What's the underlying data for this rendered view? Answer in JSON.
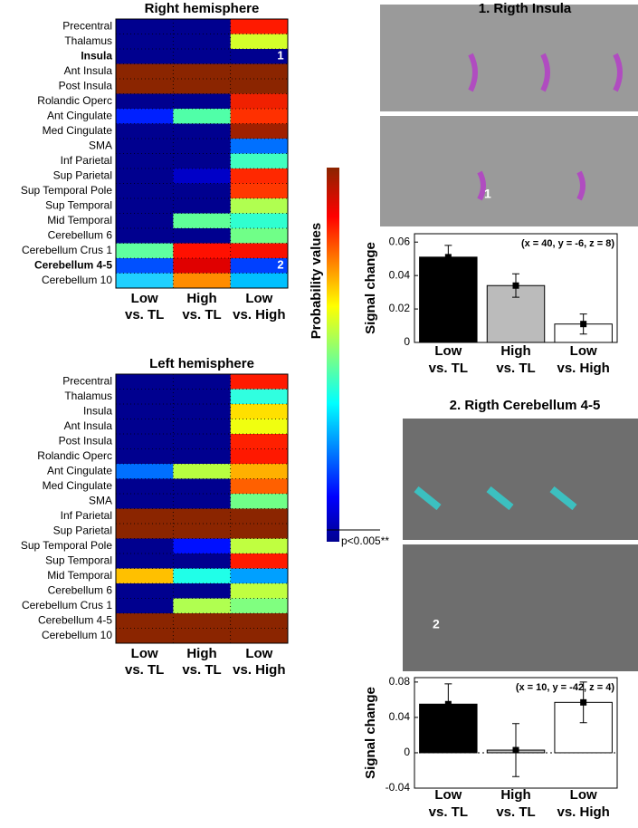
{
  "heatmaps": [
    {
      "title": "Right hemisphere",
      "columns": [
        [
          "Low",
          "vs. TL"
        ],
        [
          "High",
          "vs. TL"
        ],
        [
          "Low",
          "vs. High"
        ]
      ],
      "rows": [
        {
          "label": "Precentral",
          "colors": [
            "#00008f",
            "#00008f",
            "#ff1a00"
          ]
        },
        {
          "label": "Thalamus",
          "colors": [
            "#00008f",
            "#00008f",
            "#d4ff2a"
          ]
        },
        {
          "label": "Insula",
          "bold": true,
          "marker": "1",
          "colors": [
            "#00008f",
            "#00008f",
            "#00008f"
          ]
        },
        {
          "label": "Ant Insula",
          "colors": [
            "#8b2500",
            "#8b2500",
            "#8b2500"
          ]
        },
        {
          "label": "Post Insula",
          "colors": [
            "#8b2500",
            "#8b2500",
            "#8b2500"
          ]
        },
        {
          "label": "Rolandic Operc",
          "colors": [
            "#00008f",
            "#00008f",
            "#f02000"
          ]
        },
        {
          "label": "Ant Cingulate",
          "colors": [
            "#0020ff",
            "#50ffa8",
            "#ff3000"
          ]
        },
        {
          "label": "Med Cingulate",
          "colors": [
            "#00008f",
            "#00008f",
            "#a02000"
          ]
        },
        {
          "label": "SMA",
          "colors": [
            "#00008f",
            "#00008f",
            "#0070ff"
          ]
        },
        {
          "label": "Inf Parietal",
          "colors": [
            "#00008f",
            "#00008f",
            "#40ffc0"
          ]
        },
        {
          "label": "Sup Parietal",
          "colors": [
            "#00008f",
            "#0000c8",
            "#ff2800"
          ]
        },
        {
          "label": "Sup Temporal Pole",
          "colors": [
            "#00008f",
            "#00008f",
            "#ff3800"
          ]
        },
        {
          "label": "Sup Temporal",
          "colors": [
            "#00008f",
            "#00008f",
            "#b0ff50"
          ]
        },
        {
          "label": "Mid Temporal",
          "colors": [
            "#00008f",
            "#60ff98",
            "#30ffd0"
          ]
        },
        {
          "label": "Cerebellum 6",
          "colors": [
            "#00008f",
            "#00008f",
            "#70ff88"
          ]
        },
        {
          "label": "Cerebellum Crus 1",
          "colors": [
            "#60ffa0",
            "#ff1000",
            "#f81000"
          ]
        },
        {
          "label": "Cerebellum 4-5",
          "bold": true,
          "marker": "2",
          "colors": [
            "#0050ff",
            "#e00000",
            "#0040ff"
          ]
        },
        {
          "label": "Cerebellum 10",
          "colors": [
            "#20d0ff",
            "#ff8c00",
            "#00c0ff"
          ]
        }
      ]
    },
    {
      "title": "Left hemisphere",
      "columns": [
        [
          "Low",
          "vs. TL"
        ],
        [
          "High",
          "vs. TL"
        ],
        [
          "Low",
          "vs. High"
        ]
      ],
      "rows": [
        {
          "label": "Precentral",
          "colors": [
            "#00008f",
            "#00008f",
            "#ff1a00"
          ]
        },
        {
          "label": "Thalamus",
          "colors": [
            "#00008f",
            "#00008f",
            "#30ffe0"
          ]
        },
        {
          "label": "Insula",
          "colors": [
            "#00008f",
            "#00008f",
            "#ffe000"
          ]
        },
        {
          "label": "Ant Insula",
          "colors": [
            "#00008f",
            "#00008f",
            "#f0ff10"
          ]
        },
        {
          "label": "Post Insula",
          "colors": [
            "#00008f",
            "#00008f",
            "#ff2000"
          ]
        },
        {
          "label": "Rolandic Operc",
          "colors": [
            "#00008f",
            "#00008f",
            "#ff1800"
          ]
        },
        {
          "label": "Ant Cingulate",
          "colors": [
            "#0070ff",
            "#b8ff40",
            "#ffb000"
          ]
        },
        {
          "label": "Med Cingulate",
          "colors": [
            "#00008f",
            "#00008f",
            "#ff6000"
          ]
        },
        {
          "label": "SMA",
          "colors": [
            "#00008f",
            "#00008f",
            "#70ff88"
          ]
        },
        {
          "label": "Inf Parietal",
          "colors": [
            "#8b2500",
            "#8b2500",
            "#8b2500"
          ]
        },
        {
          "label": "Sup Parietal",
          "colors": [
            "#8b2500",
            "#8b2500",
            "#8b2500"
          ]
        },
        {
          "label": "Sup Temporal Pole",
          "colors": [
            "#00008f",
            "#0010ff",
            "#c0ff40"
          ]
        },
        {
          "label": "Sup Temporal",
          "colors": [
            "#00008f",
            "#00008f",
            "#ff1a00"
          ]
        },
        {
          "label": "Mid Temporal",
          "colors": [
            "#ffc000",
            "#20ffe8",
            "#00a0ff"
          ]
        },
        {
          "label": "Cerebellum 6",
          "colors": [
            "#00008f",
            "#00008f",
            "#c0ff40"
          ]
        },
        {
          "label": "Cerebellum Crus 1",
          "colors": [
            "#00008f",
            "#b0ff50",
            "#80ff80"
          ]
        },
        {
          "label": "Cerebellum 4-5",
          "colors": [
            "#8b2500",
            "#8b2500",
            "#8b2500"
          ]
        },
        {
          "label": "Cerebellum 10",
          "colors": [
            "#8b2500",
            "#8b2500",
            "#8b2500"
          ]
        }
      ]
    }
  ],
  "colorbar": {
    "label": "Probability values",
    "note": "p<0.005**"
  },
  "images": [
    {
      "label": "1"
    },
    {
      "label": "2"
    }
  ],
  "chart_data": [
    {
      "type": "bar",
      "title": "1. Rigth Insula",
      "annotation": "(x = 40, y = -6, z = 8)",
      "y_label": "Signal change",
      "categories": [
        [
          "Low",
          "vs. TL"
        ],
        [
          "High",
          "vs. TL"
        ],
        [
          "Low",
          "vs. High"
        ]
      ],
      "values": [
        0.051,
        0.034,
        0.011
      ],
      "errors": [
        0.007,
        0.007,
        0.006
      ],
      "colors": [
        "#000000",
        "#bbbbbb",
        "#ffffff"
      ],
      "ylim": [
        0,
        0.065
      ],
      "yticks": [
        0,
        0.02,
        0.04,
        0.06
      ]
    },
    {
      "type": "bar",
      "title": "2. Rigth Cerebellum 4-5",
      "annotation": "(x = 10, y = -42, z = 4)",
      "y_label": "Signal change",
      "categories": [
        [
          "Low",
          "vs. TL"
        ],
        [
          "High",
          "vs. TL"
        ],
        [
          "Low",
          "vs. High"
        ]
      ],
      "values": [
        0.055,
        0.003,
        0.057
      ],
      "errors": [
        0.023,
        0.03,
        0.023
      ],
      "colors": [
        "#000000",
        "#bbbbbb",
        "#ffffff"
      ],
      "ylim": [
        -0.04,
        0.085
      ],
      "yticks": [
        -0.04,
        0,
        0.04,
        0.08
      ]
    }
  ]
}
